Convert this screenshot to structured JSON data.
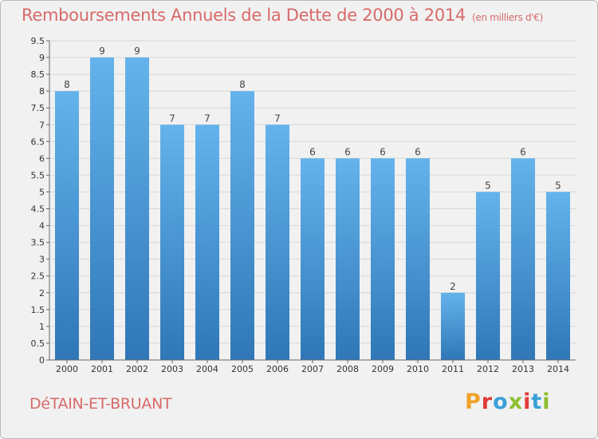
{
  "title": "Remboursements Annuels de la Dette de 2000 à 2014",
  "subtitle": "(en milliers d'€)",
  "commune": "DéTAIN-ET-BRUANT",
  "logo_text": "Proxiti",
  "colors": {
    "title": "#d86a6a",
    "bar_top": "#64b3ec",
    "bar_bottom": "#2f77b7",
    "grid": "#d8d8d8",
    "logo": [
      "#f0a229",
      "#e03c3c",
      "#3aa0d8",
      "#8cbf2f",
      "#e03c3c",
      "#3aa0d8",
      "#8cbf2f"
    ]
  },
  "chart_data": {
    "type": "bar",
    "categories": [
      "2000",
      "2001",
      "2002",
      "2003",
      "2004",
      "2005",
      "2006",
      "2007",
      "2008",
      "2009",
      "2010",
      "2011",
      "2012",
      "2013",
      "2014"
    ],
    "values": [
      8,
      9,
      9,
      7,
      7,
      8,
      7,
      6,
      6,
      6,
      6,
      2,
      5,
      6,
      5
    ],
    "data_labels": [
      "8",
      "9",
      "9",
      "7",
      "7",
      "8",
      "7",
      "6",
      "6",
      "6",
      "6",
      "2",
      "5",
      "6",
      "5"
    ],
    "y_ticks": [
      "0",
      "0.5",
      "1",
      "1.5",
      "2",
      "2.5",
      "3",
      "3.5",
      "4",
      "4.5",
      "5",
      "5.5",
      "6",
      "6.5",
      "7",
      "7.5",
      "8",
      "8.5",
      "9",
      "9.5"
    ],
    "ylim": [
      0,
      9.5
    ],
    "grid": true,
    "legend": false
  }
}
